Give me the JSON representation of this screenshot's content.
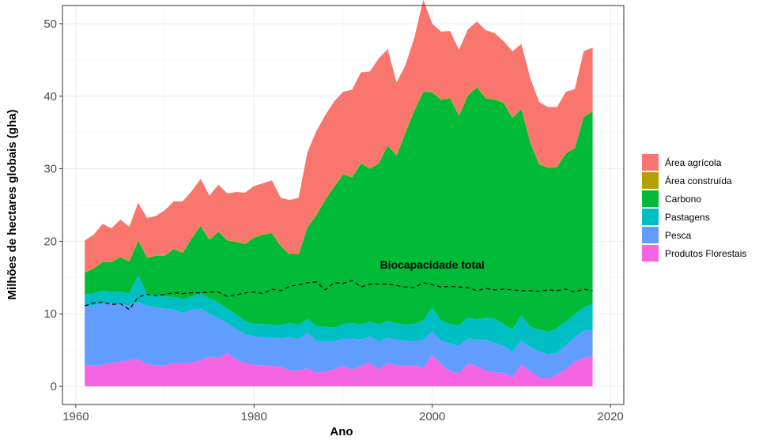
{
  "chart_data": {
    "type": "area",
    "stacked": true,
    "xlabel": "Ano",
    "ylabel": "Milhões de hectares globais (gha)",
    "xlim": [
      1958.5,
      2021.5
    ],
    "ylim": [
      -2.5,
      52.5
    ],
    "x_ticks": [
      1960,
      1980,
      2000,
      2020
    ],
    "y_ticks": [
      0,
      10,
      20,
      30,
      40,
      50
    ],
    "grid": true,
    "legend_position": "right",
    "x": [
      1961,
      1962,
      1963,
      1964,
      1965,
      1966,
      1967,
      1968,
      1969,
      1970,
      1971,
      1972,
      1973,
      1974,
      1975,
      1976,
      1977,
      1978,
      1979,
      1980,
      1981,
      1982,
      1983,
      1984,
      1985,
      1986,
      1987,
      1988,
      1989,
      1990,
      1991,
      1992,
      1993,
      1994,
      1995,
      1996,
      1997,
      1998,
      1999,
      2000,
      2001,
      2002,
      2003,
      2004,
      2005,
      2006,
      2007,
      2008,
      2009,
      2010,
      2011,
      2012,
      2013,
      2014,
      2015,
      2016,
      2017,
      2018
    ],
    "series": [
      {
        "name": "Produtos Florestais",
        "color": "#F564E3",
        "values": [
          3.0,
          2.9,
          3.0,
          3.2,
          3.4,
          3.6,
          3.7,
          3.1,
          2.9,
          2.9,
          3.2,
          3.2,
          3.3,
          3.6,
          4.1,
          3.9,
          4.6,
          3.7,
          3.2,
          3.0,
          2.9,
          2.8,
          2.7,
          2.2,
          2.2,
          2.5,
          1.9,
          2.0,
          2.4,
          2.8,
          2.3,
          2.8,
          3.3,
          2.3,
          3.2,
          2.9,
          2.8,
          2.9,
          2.5,
          4.4,
          3.0,
          2.1,
          1.8,
          3.1,
          2.8,
          2.2,
          1.9,
          1.9,
          1.3,
          3.0,
          2.1,
          1.2,
          1.1,
          1.6,
          2.4,
          3.4,
          3.9,
          4.2
        ]
      },
      {
        "name": "Pesca",
        "color": "#619CFF",
        "values": [
          8.1,
          8.3,
          8.4,
          8.2,
          7.9,
          7.6,
          7.9,
          8.0,
          8.0,
          7.8,
          7.4,
          6.9,
          7.3,
          7.1,
          5.9,
          5.5,
          4.1,
          4.2,
          4.0,
          3.9,
          3.9,
          3.9,
          3.9,
          4.6,
          4.3,
          4.9,
          4.4,
          4.2,
          3.8,
          3.8,
          4.3,
          3.7,
          3.6,
          3.9,
          3.5,
          3.5,
          3.5,
          3.3,
          3.9,
          3.2,
          3.3,
          3.8,
          3.8,
          3.5,
          3.6,
          4.2,
          4.1,
          3.7,
          3.5,
          3.3,
          3.3,
          3.6,
          3.3,
          3.0,
          3.3,
          3.4,
          3.8,
          3.6
        ]
      },
      {
        "name": "Pastagens",
        "color": "#00BFC4",
        "values": [
          1.6,
          1.6,
          1.8,
          1.6,
          1.7,
          1.6,
          3.7,
          1.6,
          1.7,
          1.7,
          1.7,
          1.9,
          1.8,
          2.1,
          2.1,
          2.2,
          2.0,
          2.0,
          1.8,
          1.7,
          1.8,
          1.8,
          1.9,
          1.9,
          2.0,
          1.9,
          2.0,
          2.0,
          1.9,
          2.0,
          2.1,
          2.0,
          2.0,
          2.3,
          2.3,
          2.3,
          2.2,
          2.4,
          2.7,
          3.2,
          2.8,
          2.7,
          2.8,
          2.9,
          2.8,
          3.1,
          3.3,
          3.0,
          3.0,
          3.5,
          2.8,
          3.0,
          3.1,
          3.4,
          3.2,
          3.1,
          3.2,
          3.6
        ]
      },
      {
        "name": "Carbono",
        "color": "#00BA38",
        "values": [
          3.0,
          3.4,
          3.9,
          4.1,
          4.8,
          4.4,
          4.8,
          5.0,
          5.4,
          5.6,
          6.6,
          6.4,
          8.0,
          9.3,
          8.1,
          9.7,
          9.4,
          10.0,
          10.6,
          11.9,
          12.3,
          12.6,
          10.8,
          9.5,
          9.7,
          12.6,
          15.3,
          17.5,
          19.4,
          20.6,
          20.1,
          22.2,
          21.1,
          22.2,
          24.2,
          23.1,
          26.5,
          29.4,
          31.5,
          29.7,
          30.4,
          31.1,
          28.9,
          30.6,
          32.0,
          30.2,
          30.2,
          30.5,
          29.2,
          28.4,
          25.4,
          22.8,
          22.6,
          22.2,
          23.2,
          22.9,
          26.2,
          26.5
        ]
      },
      {
        "name": "Área construída",
        "color": "#B79F00",
        "values": [
          0.1,
          0.1,
          0.1,
          0.1,
          0.1,
          0.1,
          0.1,
          0.1,
          0.1,
          0.1,
          0.1,
          0.1,
          0.1,
          0.1,
          0.1,
          0.1,
          0.1,
          0.1,
          0.1,
          0.1,
          0.1,
          0.1,
          0.1,
          0.1,
          0.1,
          0.1,
          0.1,
          0.1,
          0.1,
          0.1,
          0.1,
          0.1,
          0.1,
          0.1,
          0.1,
          0.1,
          0.1,
          0.1,
          0.1,
          0.1,
          0.1,
          0.1,
          0.1,
          0.1,
          0.1,
          0.1,
          0.1,
          0.1,
          0.1,
          0.1,
          0.1,
          0.1,
          0.1,
          0.1,
          0.1,
          0.1,
          0.1,
          0.1
        ]
      },
      {
        "name": "Área agrícola",
        "color": "#F8766D",
        "values": [
          4.3,
          4.6,
          5.2,
          4.6,
          5.1,
          4.7,
          5.1,
          5.4,
          5.4,
          6.2,
          6.5,
          7.0,
          6.4,
          6.4,
          6.0,
          6.4,
          6.4,
          6.8,
          7.0,
          7.0,
          7.0,
          7.2,
          6.6,
          7.4,
          7.7,
          10.3,
          11.5,
          11.6,
          11.7,
          11.3,
          12.0,
          12.5,
          13.3,
          14.4,
          13.2,
          10.0,
          9.2,
          10.0,
          12.6,
          9.4,
          9.3,
          9.2,
          9.0,
          9.0,
          9.0,
          9.3,
          9.1,
          8.4,
          9.1,
          8.9,
          8.8,
          8.5,
          8.3,
          8.2,
          8.4,
          8.1,
          9.0,
          8.7
        ]
      }
    ],
    "biocapacity": {
      "label": "Biocapacidade total",
      "values": [
        11.1,
        11.5,
        11.6,
        11.3,
        11.4,
        10.6,
        12.3,
        12.7,
        12.5,
        12.7,
        12.9,
        12.8,
        12.9,
        12.9,
        13.0,
        13.0,
        12.4,
        12.6,
        12.9,
        13.0,
        12.8,
        13.4,
        13.2,
        13.8,
        14.0,
        14.3,
        14.4,
        13.3,
        14.3,
        14.2,
        14.6,
        13.7,
        14.1,
        14.1,
        14.1,
        13.9,
        13.7,
        13.6,
        14.3,
        14.0,
        13.7,
        13.8,
        13.7,
        13.6,
        13.2,
        13.5,
        13.3,
        13.4,
        13.3,
        13.2,
        13.2,
        13.1,
        13.3,
        13.2,
        13.4,
        13.0,
        13.4,
        13.2
      ],
      "label_x": 2000,
      "label_y": 16.8
    }
  },
  "legend": {
    "items": [
      {
        "label": "Área agrícola",
        "color": "#F8766D"
      },
      {
        "label": "Área construída",
        "color": "#B79F00"
      },
      {
        "label": "Carbono",
        "color": "#00BA38"
      },
      {
        "label": "Pastagens",
        "color": "#00BFC4"
      },
      {
        "label": "Pesca",
        "color": "#619CFF"
      },
      {
        "label": "Produtos Florestais",
        "color": "#F564E3"
      }
    ]
  }
}
